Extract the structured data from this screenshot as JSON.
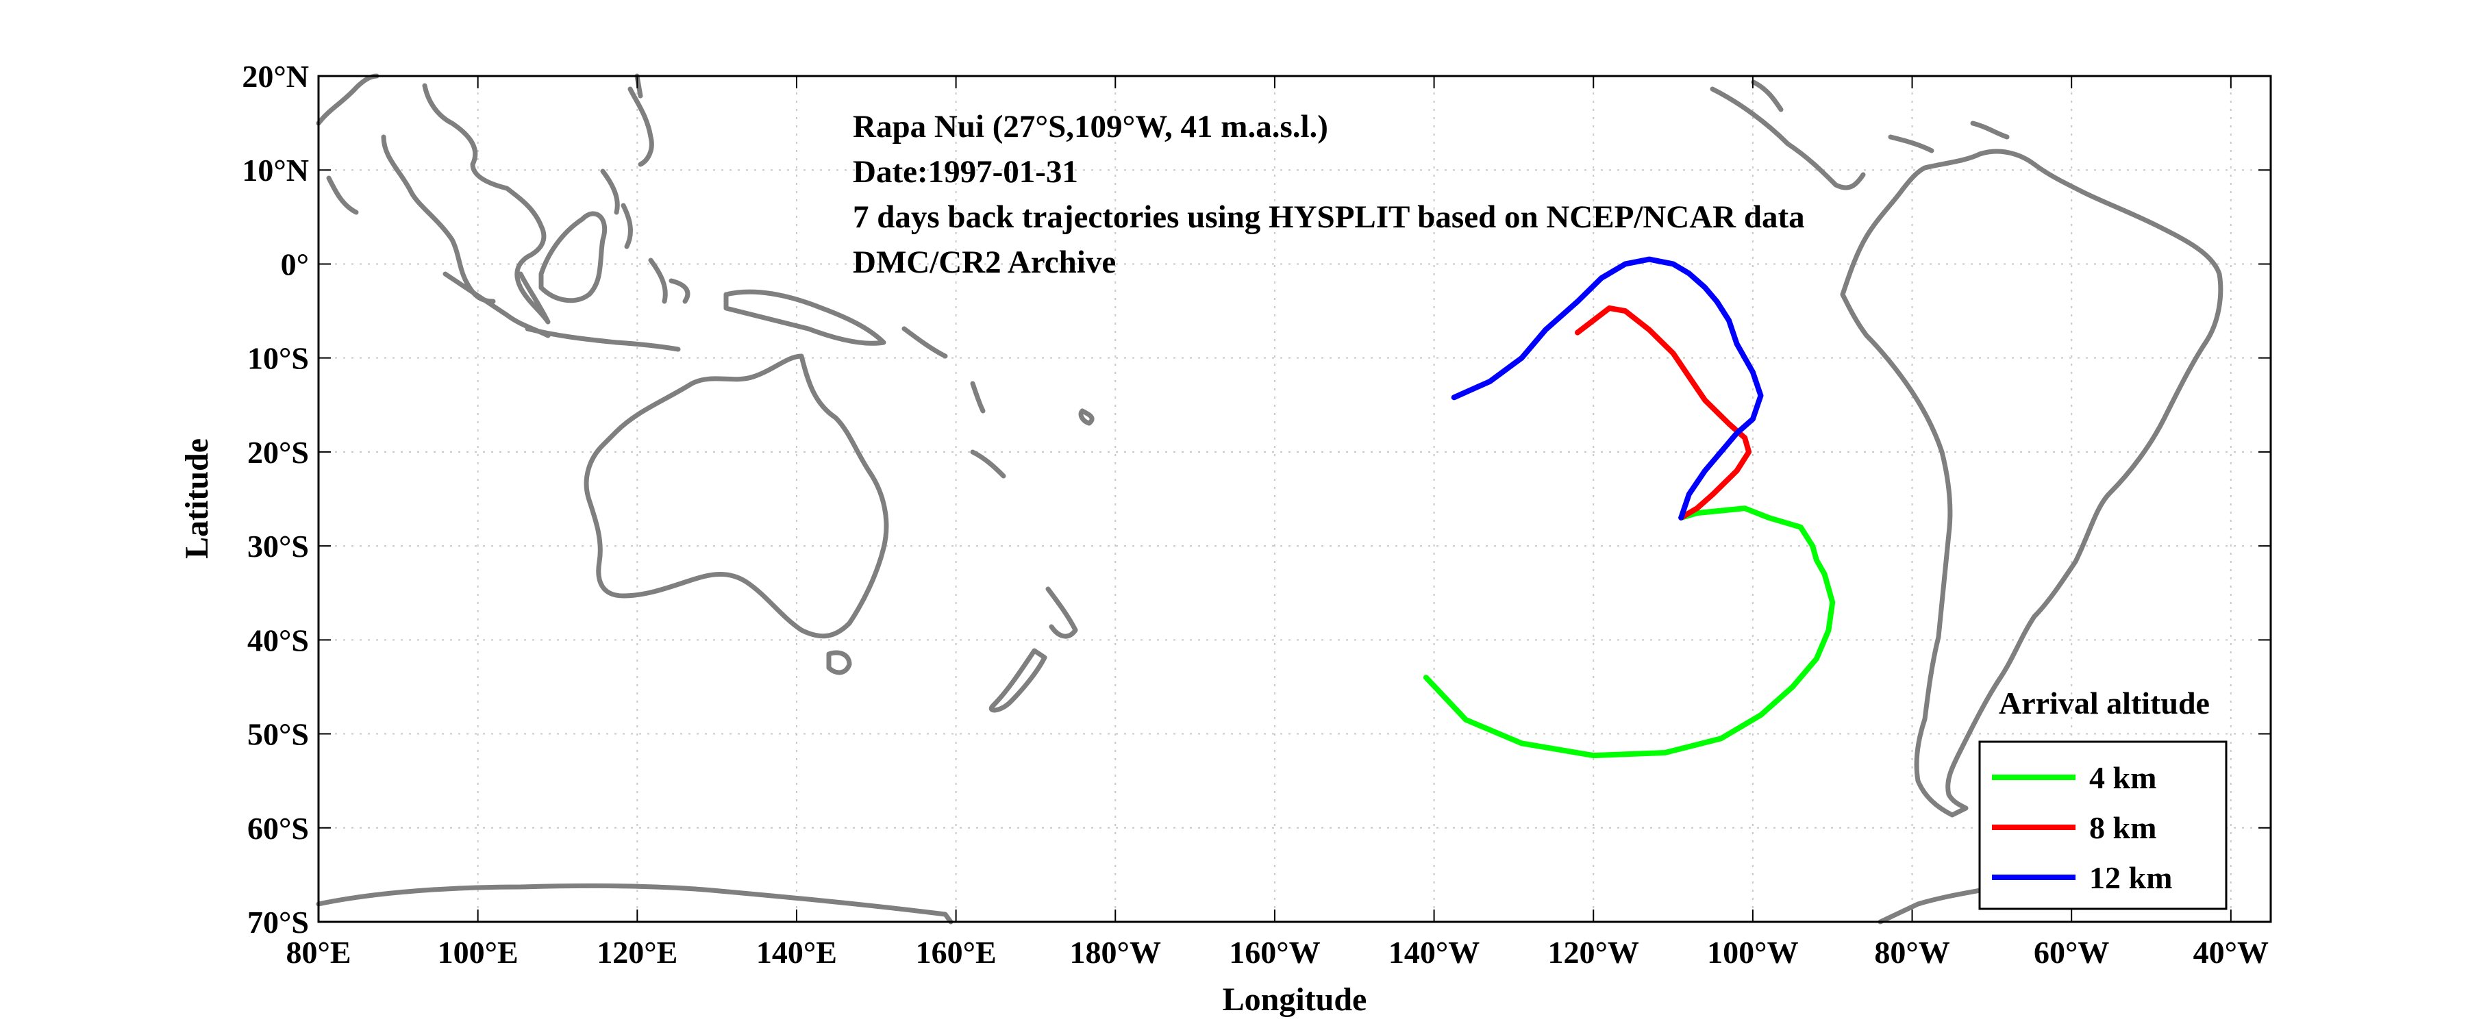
{
  "chart_data": {
    "type": "line",
    "annotations": [
      "Rapa Nui (27°S,109°W, 41 m.a.s.l.)",
      "Date:1997-01-31",
      "7 days back trajectories using HYSPLIT based on NCEP/NCAR data",
      "DMC/CR2 Archive"
    ],
    "xlabel": "Longitude",
    "ylabel": "Latitude",
    "xlim": [
      80,
      325
    ],
    "ylim": [
      -70,
      20
    ],
    "grid": true,
    "x_ticks": [
      {
        "v": 80,
        "label": "80°E"
      },
      {
        "v": 100,
        "label": "100°E"
      },
      {
        "v": 120,
        "label": "120°E"
      },
      {
        "v": 140,
        "label": "140°E"
      },
      {
        "v": 160,
        "label": "160°E"
      },
      {
        "v": 180,
        "label": "180°W"
      },
      {
        "v": 200,
        "label": "160°W"
      },
      {
        "v": 220,
        "label": "140°W"
      },
      {
        "v": 240,
        "label": "120°W"
      },
      {
        "v": 260,
        "label": "100°W"
      },
      {
        "v": 280,
        "label": "80°W"
      },
      {
        "v": 300,
        "label": "60°W"
      },
      {
        "v": 320,
        "label": "40°W"
      }
    ],
    "y_ticks": [
      {
        "v": 20,
        "label": "20°N"
      },
      {
        "v": 10,
        "label": "10°N"
      },
      {
        "v": 0,
        "label": "0°"
      },
      {
        "v": -10,
        "label": "10°S"
      },
      {
        "v": -20,
        "label": "20°S"
      },
      {
        "v": -30,
        "label": "30°S"
      },
      {
        "v": -40,
        "label": "40°S"
      },
      {
        "v": -50,
        "label": "50°S"
      },
      {
        "v": -60,
        "label": "60°S"
      },
      {
        "v": -70,
        "label": "70°S"
      }
    ],
    "legend": {
      "title": "Arrival altitude",
      "position": "bottom-right"
    },
    "series": [
      {
        "name": "4 km",
        "color": "#00ff00",
        "points": [
          [
            251,
            -27
          ],
          [
            253,
            -26.5
          ],
          [
            259,
            -26
          ],
          [
            262,
            -27
          ],
          [
            266,
            -28
          ],
          [
            267.5,
            -30
          ],
          [
            268,
            -31.5
          ],
          [
            269,
            -33
          ],
          [
            270,
            -36
          ],
          [
            269.5,
            -39
          ],
          [
            268,
            -42
          ],
          [
            265,
            -45
          ],
          [
            261,
            -48
          ],
          [
            256,
            -50.5
          ],
          [
            249,
            -52
          ],
          [
            240,
            -52.3
          ],
          [
            231,
            -51
          ],
          [
            224,
            -48.5
          ],
          [
            219,
            -44
          ]
        ]
      },
      {
        "name": "8 km",
        "color": "#ff0000",
        "points": [
          [
            251,
            -27
          ],
          [
            253,
            -26
          ],
          [
            255,
            -24.5
          ],
          [
            258,
            -22
          ],
          [
            259.5,
            -20
          ],
          [
            259,
            -18.5
          ],
          [
            257,
            -17
          ],
          [
            254,
            -14.5
          ],
          [
            252,
            -12
          ],
          [
            250,
            -9.5
          ],
          [
            247,
            -7
          ],
          [
            244,
            -5
          ],
          [
            242,
            -4.7
          ],
          [
            240,
            -6
          ],
          [
            238,
            -7.3
          ]
        ]
      },
      {
        "name": "12 km",
        "color": "#0000ff",
        "points": [
          [
            251,
            -27
          ],
          [
            252,
            -24.5
          ],
          [
            254,
            -22
          ],
          [
            256,
            -20
          ],
          [
            258,
            -18
          ],
          [
            260,
            -16.5
          ],
          [
            261,
            -14
          ],
          [
            260,
            -11.5
          ],
          [
            258,
            -8.5
          ],
          [
            257,
            -6
          ],
          [
            255.5,
            -4
          ],
          [
            254,
            -2.5
          ],
          [
            252,
            -1
          ],
          [
            250,
            0
          ],
          [
            247,
            0.5
          ],
          [
            244,
            0
          ],
          [
            241,
            -1.5
          ],
          [
            238,
            -4
          ],
          [
            234,
            -7
          ],
          [
            231,
            -10
          ],
          [
            227,
            -12.5
          ],
          [
            222.5,
            -14.2
          ]
        ]
      }
    ]
  }
}
